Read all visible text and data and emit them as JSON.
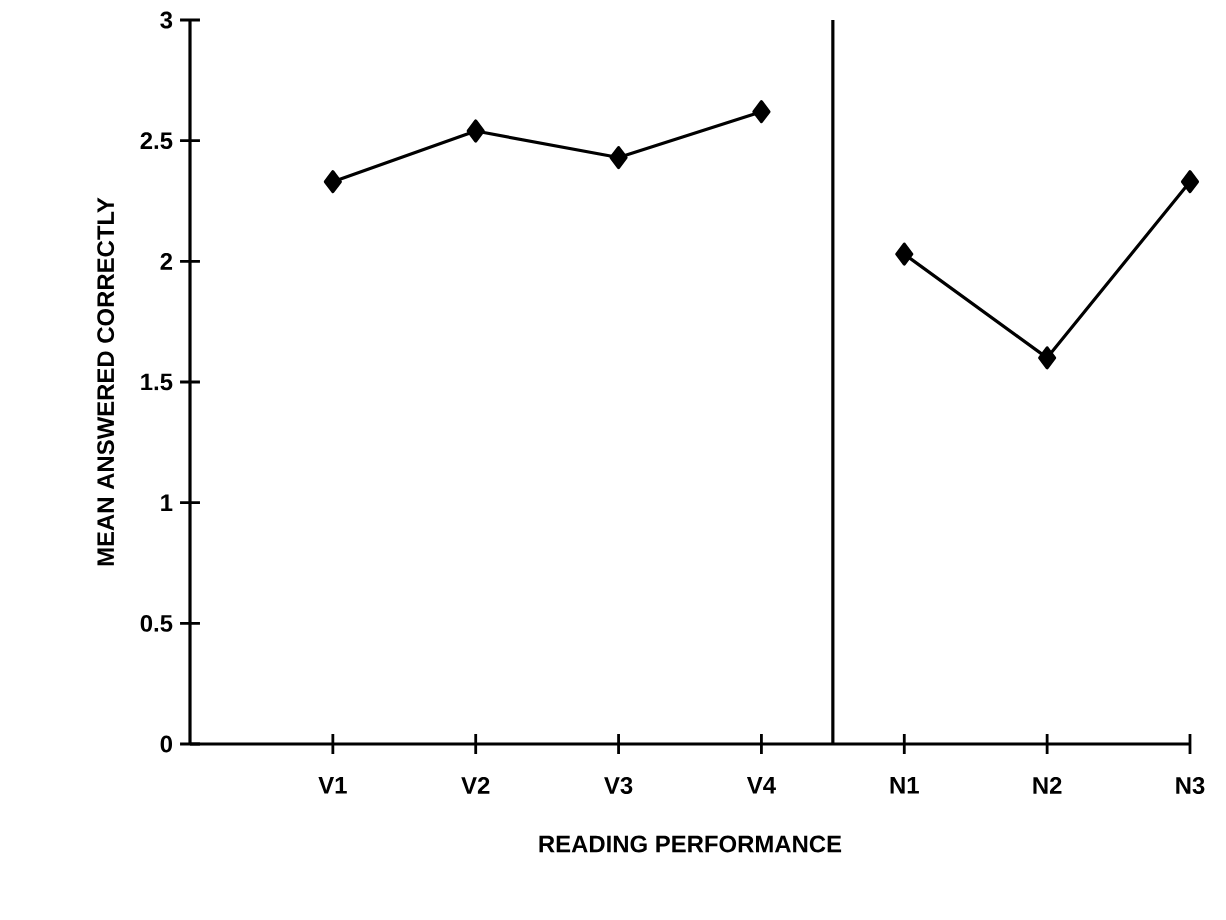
{
  "chart_data": {
    "type": "line",
    "xlabel": "READING PERFORMANCE",
    "ylabel": "MEAN ANSWERED CORRECTLY",
    "categories": [
      "V1",
      "V2",
      "V3",
      "V4",
      "N1",
      "N2",
      "N3"
    ],
    "series": [
      {
        "color": "#000000",
        "values": [
          2.33,
          2.54,
          2.43,
          2.62,
          null,
          null,
          null
        ]
      },
      {
        "color": "#000000",
        "values": [
          null,
          null,
          null,
          null,
          2.03,
          1.6,
          2.33
        ]
      }
    ],
    "ylim": [
      0,
      3
    ],
    "yticks": [
      0,
      0.5,
      1,
      1.5,
      2,
      2.5,
      3
    ],
    "marker": "diamond",
    "line_style": "solid"
  }
}
